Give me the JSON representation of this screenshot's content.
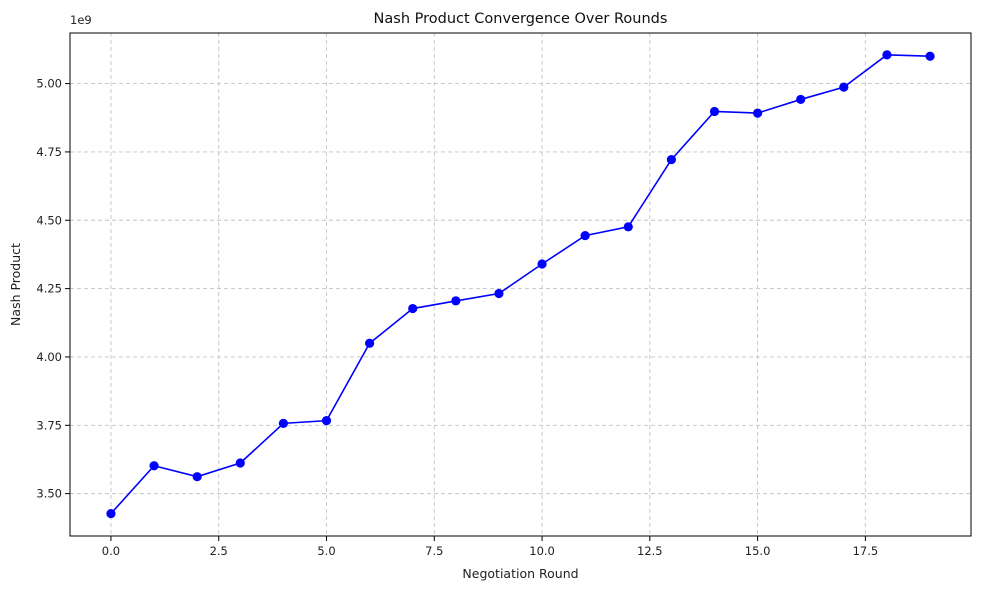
{
  "chart_data": {
    "type": "line",
    "title": "Nash Product Convergence Over Rounds",
    "xlabel": "Negotiation Round",
    "ylabel": "Nash Product",
    "y_offset_label": "1e9",
    "xlim": [
      -0.95,
      19.95
    ],
    "ylim": [
      3.345,
      5.185
    ],
    "x_ticks": [
      0.0,
      2.5,
      5.0,
      7.5,
      10.0,
      12.5,
      15.0,
      17.5
    ],
    "x_tick_labels": [
      "0.0",
      "2.5",
      "5.0",
      "7.5",
      "10.0",
      "12.5",
      "15.0",
      "17.5"
    ],
    "y_ticks": [
      3.5,
      3.75,
      4.0,
      4.25,
      4.5,
      4.75,
      5.0
    ],
    "y_tick_labels": [
      "3.50",
      "3.75",
      "4.00",
      "4.25",
      "4.50",
      "4.75",
      "5.00"
    ],
    "grid": true,
    "marker": "circle",
    "color": "#0000ff",
    "series": [
      {
        "x": [
          0,
          1,
          2,
          3,
          4,
          5,
          6,
          7,
          8,
          9,
          10,
          11,
          12,
          13,
          14,
          15,
          16,
          17,
          18,
          19
        ],
        "values": [
          3.427,
          3.602,
          3.562,
          3.612,
          3.757,
          3.767,
          4.05,
          4.177,
          4.205,
          4.232,
          4.34,
          4.444,
          4.476,
          4.722,
          4.898,
          4.892,
          4.942,
          4.987,
          5.105,
          5.1
        ]
      }
    ]
  }
}
